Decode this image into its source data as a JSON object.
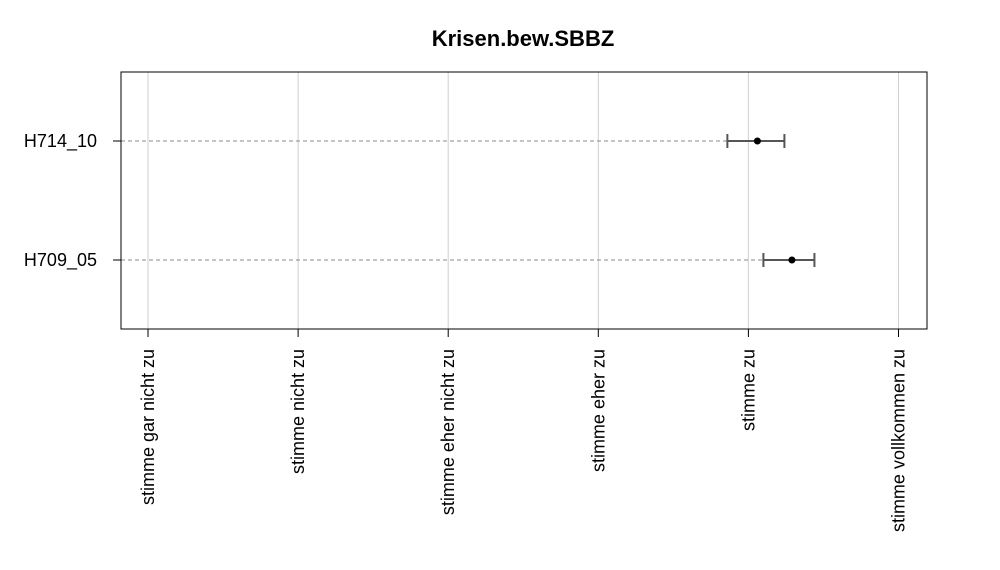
{
  "chart_data": {
    "type": "scatter",
    "title": "Krisen.bew.SBBZ",
    "xlabel": "",
    "ylabel": "",
    "x_ticks": [
      {
        "value": 1,
        "label": "stimme gar nicht zu"
      },
      {
        "value": 2,
        "label": "stimme nicht zu"
      },
      {
        "value": 3,
        "label": "stimme eher nicht zu"
      },
      {
        "value": 4,
        "label": "stimme eher zu"
      },
      {
        "value": 5,
        "label": "stimme zu"
      },
      {
        "value": 6,
        "label": "stimme vollkommen zu"
      }
    ],
    "xlim": [
      0.82,
      6.19
    ],
    "grid": true,
    "series": [
      {
        "points": [
          {
            "label": "H714_10",
            "mean": 5.06,
            "lower": 4.86,
            "upper": 5.24
          },
          {
            "label": "H709_05",
            "mean": 5.29,
            "lower": 5.1,
            "upper": 5.44
          }
        ]
      }
    ]
  }
}
